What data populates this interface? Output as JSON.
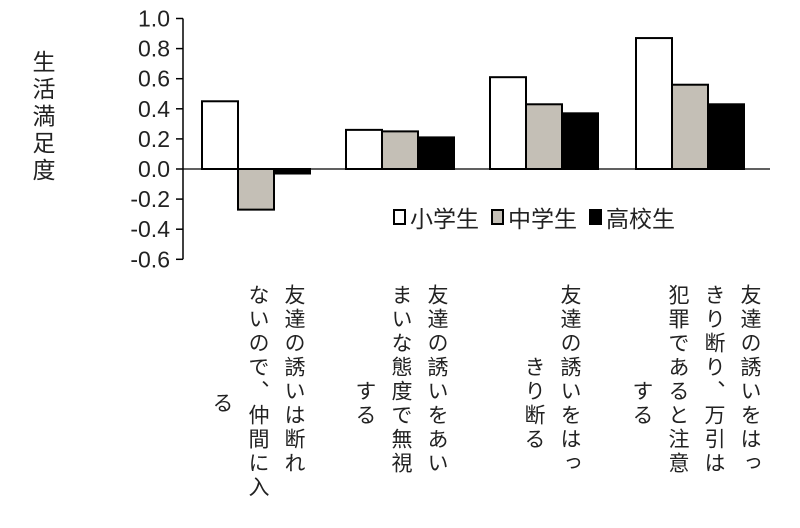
{
  "chart_data": {
    "type": "bar",
    "title": "",
    "xlabel": "",
    "ylabel": "生活満足度",
    "ylim": [
      -0.6,
      1.0
    ],
    "yticks": [
      "1.0",
      "0.8",
      "0.6",
      "0.4",
      "0.2",
      "0.0",
      "-0.2",
      "-0.4",
      "-0.6"
    ],
    "grid": false,
    "legend_position": "right, inside plot below zero line",
    "categories": [
      "友達の誘いは断れないので、仲間に入る",
      "友達の誘いをあいまいな態度で無視する",
      "友達の誘いをはっきり断る",
      "友達の誘いをはっきり断り、万引は犯罪であると注意する"
    ],
    "category_lines": [
      [
        "友達の誘いは断れ",
        "ないので、仲間に入",
        "る"
      ],
      [
        "友達の誘いをあい",
        "まいな態度で無視",
        "する"
      ],
      [
        "友達の誘いをはっ",
        "きり断る"
      ],
      [
        "友達の誘いをはっ",
        "きり断り、万引は",
        "犯罪であると注意",
        "する"
      ]
    ],
    "series": [
      {
        "name": "小学生",
        "color": "#ffffff",
        "values": [
          0.45,
          0.26,
          0.61,
          0.87
        ]
      },
      {
        "name": "中学生",
        "color": "#c4bfb6",
        "values": [
          -0.27,
          0.25,
          0.43,
          0.56
        ]
      },
      {
        "name": "高校生",
        "color": "#000000",
        "values": [
          -0.03,
          0.21,
          0.37,
          0.43
        ]
      }
    ]
  }
}
